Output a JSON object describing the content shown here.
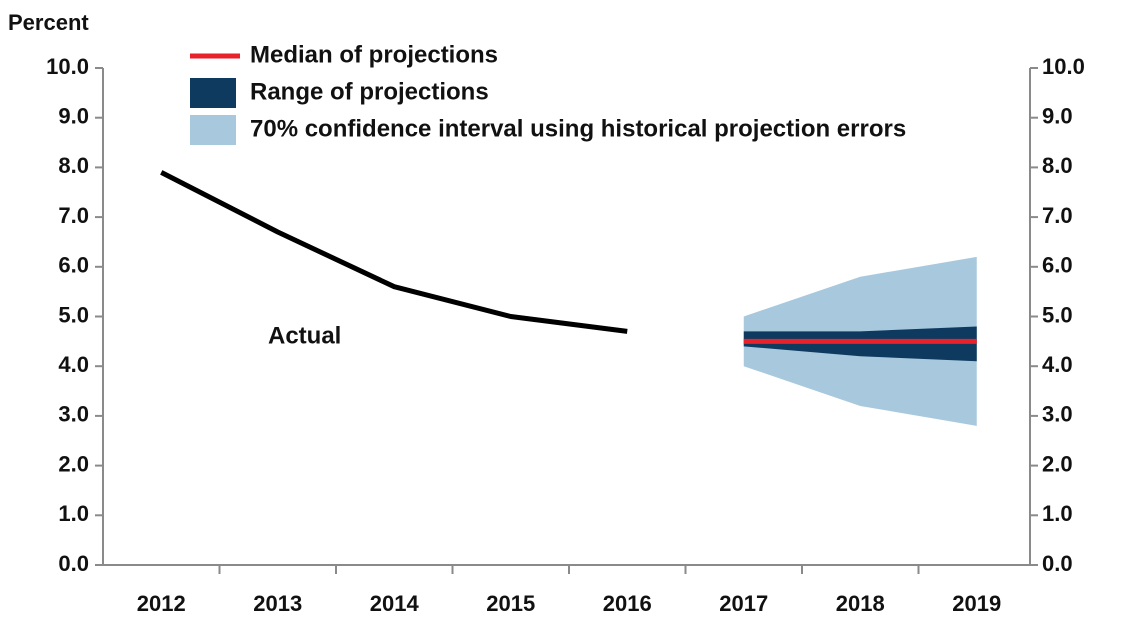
{
  "chart_data": {
    "type": "line",
    "y_label": "Percent",
    "annotation": "Actual",
    "categories": [
      "2012",
      "2013",
      "2014",
      "2015",
      "2016",
      "2017",
      "2018",
      "2019"
    ],
    "ylim": [
      0,
      10
    ],
    "yticks": [
      {
        "value": 0,
        "label": "0.0"
      },
      {
        "value": 1,
        "label": "1.0"
      },
      {
        "value": 2,
        "label": "2.0"
      },
      {
        "value": 3,
        "label": "3.0"
      },
      {
        "value": 4,
        "label": "4.0"
      },
      {
        "value": 5,
        "label": "5.0"
      },
      {
        "value": 6,
        "label": "6.0"
      },
      {
        "value": 7,
        "label": "7.0"
      },
      {
        "value": 8,
        "label": "8.0"
      },
      {
        "value": 9,
        "label": "9.0"
      },
      {
        "value": 10,
        "label": "10.0"
      }
    ],
    "y2lim": [
      0,
      10
    ],
    "y2ticks": [
      {
        "value": 0,
        "label": "0.0"
      },
      {
        "value": 1,
        "label": "1.0"
      },
      {
        "value": 2,
        "label": "2.0"
      },
      {
        "value": 3,
        "label": "3.0"
      },
      {
        "value": 4,
        "label": "4.0"
      },
      {
        "value": 5,
        "label": "5.0"
      },
      {
        "value": 6,
        "label": "6.0"
      },
      {
        "value": 7,
        "label": "7.0"
      },
      {
        "value": 8,
        "label": "8.0"
      },
      {
        "value": 9,
        "label": "9.0"
      },
      {
        "value": 10,
        "label": "10.0"
      }
    ],
    "series": [
      {
        "color": "#000000",
        "values": [
          7.9,
          6.7,
          5.6,
          5.0,
          4.7,
          null,
          null,
          null
        ]
      },
      {
        "name": "Median of projections",
        "color": "#e8212b",
        "values": [
          null,
          null,
          null,
          null,
          null,
          4.5,
          4.5,
          4.5
        ]
      },
      {
        "name": "Range of projections",
        "color": "#0e3a5f",
        "low": [
          null,
          null,
          null,
          null,
          null,
          4.4,
          4.2,
          4.1
        ],
        "high": [
          null,
          null,
          null,
          null,
          null,
          4.7,
          4.7,
          4.8
        ]
      },
      {
        "name": "70% confidence interval using historical projection errors",
        "color": "#a8c9dd",
        "low": [
          null,
          null,
          null,
          null,
          null,
          4.0,
          3.2,
          2.8
        ],
        "high": [
          null,
          null,
          null,
          null,
          null,
          5.0,
          5.8,
          6.2
        ]
      }
    ]
  }
}
